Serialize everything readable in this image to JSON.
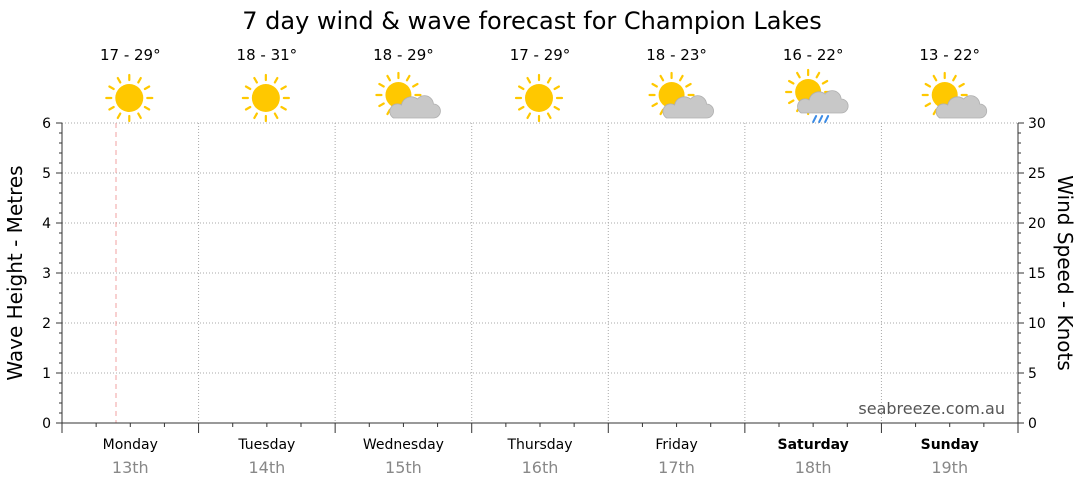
{
  "chart_data": {
    "type": "line",
    "title": "7 day wind & wave forecast for Champion Lakes",
    "ylabel_left": "Wave Height - Metres",
    "ylabel_right": "Wind Speed - Knots",
    "ylim_left": [
      0,
      6
    ],
    "ylim_right": [
      0,
      30
    ],
    "yticks_left": [
      "0",
      "1",
      "2",
      "3",
      "4",
      "5",
      "6"
    ],
    "yticks_right": [
      "0",
      "5",
      "10",
      "15",
      "20",
      "25",
      "30"
    ],
    "grid": true,
    "credit": "seabreeze.com.au",
    "days": [
      {
        "day": "Monday",
        "date": "13th",
        "temp": "17 - 29°",
        "icon": "sunny-icon",
        "bold": false
      },
      {
        "day": "Tuesday",
        "date": "14th",
        "temp": "18 - 31°",
        "icon": "sunny-icon",
        "bold": false
      },
      {
        "day": "Wednesday",
        "date": "15th",
        "temp": "18 - 29°",
        "icon": "partly-cloudy-icon",
        "bold": false
      },
      {
        "day": "Thursday",
        "date": "16th",
        "temp": "17 - 29°",
        "icon": "sunny-icon",
        "bold": false
      },
      {
        "day": "Friday",
        "date": "17th",
        "temp": "18 - 23°",
        "icon": "partly-cloudy-icon",
        "bold": false
      },
      {
        "day": "Saturday",
        "date": "18th",
        "temp": "16 - 22°",
        "icon": "shower-icon",
        "bold": true
      },
      {
        "day": "Sunday",
        "date": "19th",
        "temp": "13 - 22°",
        "icon": "partly-cloudy-icon",
        "bold": true
      }
    ],
    "series": []
  },
  "colors": {
    "sun": "#FFC800",
    "cloud": "#C8C8C8",
    "rain": "#3C8CE6",
    "now_marker": "#F0A0A0",
    "grid": "#AAAAAA",
    "axis": "#333333"
  }
}
